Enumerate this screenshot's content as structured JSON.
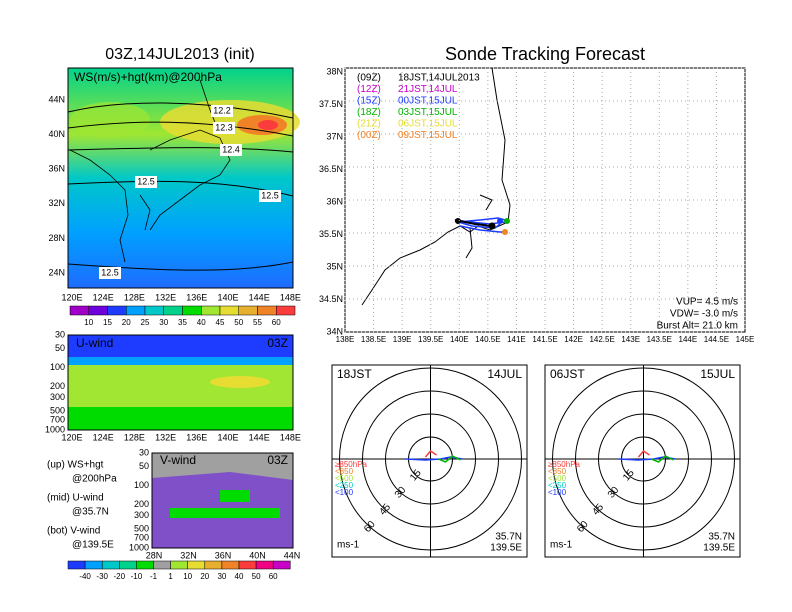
{
  "left_panel": {
    "title": "03Z,14JUL2013 (init)",
    "top_map": {
      "label": "WS(m/s)+hgt(km)@200hPa",
      "lat_labels": [
        "44N",
        "40N",
        "36N",
        "32N",
        "28N",
        "24N"
      ],
      "lon_labels": [
        "120E",
        "124E",
        "128E",
        "132E",
        "136E",
        "140E",
        "144E",
        "148E"
      ],
      "contour_labels": [
        "12.2",
        "12.3",
        "12.4",
        "12.5",
        "12.5",
        "12.5"
      ]
    },
    "ws_colorbar": {
      "values": [
        10,
        15,
        20,
        25,
        30,
        35,
        40,
        45,
        50,
        55,
        60
      ],
      "colors": [
        "#a000c8",
        "#6e00dc",
        "#1e3cff",
        "#00a0ff",
        "#00c8c8",
        "#00d28c",
        "#00dc00",
        "#a0e632",
        "#e6dc32",
        "#e6af2d",
        "#f08228",
        "#fa3c3c"
      ]
    },
    "u_wind": {
      "label": "U-wind",
      "time": "03Z",
      "pressure_labels": [
        30,
        50,
        100,
        200,
        300,
        500,
        700,
        1000
      ],
      "lon_labels": [
        "120E",
        "124E",
        "128E",
        "132E",
        "136E",
        "140E",
        "144E",
        "148E"
      ]
    },
    "legend": [
      "(up) WS+hgt",
      "@200hPa",
      "(mid) U-wind",
      "@35.7N",
      "(bot) V-wind",
      "@139.5E"
    ],
    "v_wind": {
      "label": "V-wind",
      "time": "03Z",
      "pressure_labels": [
        30,
        50,
        100,
        200,
        300,
        500,
        700,
        1000
      ],
      "lat_labels": [
        "28N",
        "32N",
        "36N",
        "40N",
        "44N"
      ]
    },
    "v_colorbar": {
      "values": [
        -40,
        -30,
        -20,
        -10,
        -1,
        1,
        10,
        20,
        30,
        40,
        50,
        60
      ],
      "colors": [
        "#1e3cff",
        "#00a0ff",
        "#00c8c8",
        "#00d28c",
        "#00dc00",
        "#a0a0a0",
        "#a0e632",
        "#e6dc32",
        "#e6af2d",
        "#f08228",
        "#fa3c3c",
        "#f00082",
        "#c800c8"
      ]
    }
  },
  "right_panel": {
    "title": "Sonde Tracking Forecast",
    "map": {
      "lat_labels": [
        "38N",
        "37.5N",
        "37N",
        "36.5N",
        "36N",
        "35.5N",
        "35N",
        "34.5N",
        "34N"
      ],
      "lon_labels": [
        "138E",
        "138.5E",
        "139E",
        "139.5E",
        "140E",
        "140.5E",
        "141E",
        "141.5E",
        "142E",
        "142.5E",
        "143E",
        "143.5E",
        "144E",
        "144.5E",
        "145E"
      ],
      "legend": [
        {
          "time": "(09Z)",
          "label": "18JST,14JUL2013",
          "color": "#000000"
        },
        {
          "time": "(12Z)",
          "label": "21JST,14JUL",
          "color": "#c800c8"
        },
        {
          "time": "(15Z)",
          "label": "00JST,15JUL",
          "color": "#1e3cff"
        },
        {
          "time": "(18Z)",
          "label": "03JST,15JUL",
          "color": "#00b400"
        },
        {
          "time": "(21Z)",
          "label": "06JST,15JUL",
          "color": "#e6dc32"
        },
        {
          "time": "(00Z)",
          "label": "09JST,15JUL",
          "color": "#f08228"
        }
      ],
      "params": [
        "VUP= 4.5 m/s",
        "VDW= -3.0 m/s",
        "Burst Alt= 21.0 km"
      ]
    },
    "polar_plots": [
      {
        "time": "18JST",
        "date": "14JUL",
        "lat": "35.7N",
        "lon": "139.5E",
        "unit": "ms-1",
        "ring_labels": [
          "15",
          "30",
          "45",
          "60"
        ],
        "level_labels": [
          "≥850hPa",
          "<850",
          "<500",
          "<250",
          "<100"
        ]
      },
      {
        "time": "06JST",
        "date": "15JUL",
        "lat": "35.7N",
        "lon": "139.5E",
        "unit": "ms-1",
        "ring_labels": [
          "15",
          "30",
          "45",
          "60"
        ],
        "level_labels": [
          "≥850hPa",
          "<850",
          "<500",
          "<250",
          "<100"
        ]
      }
    ]
  }
}
